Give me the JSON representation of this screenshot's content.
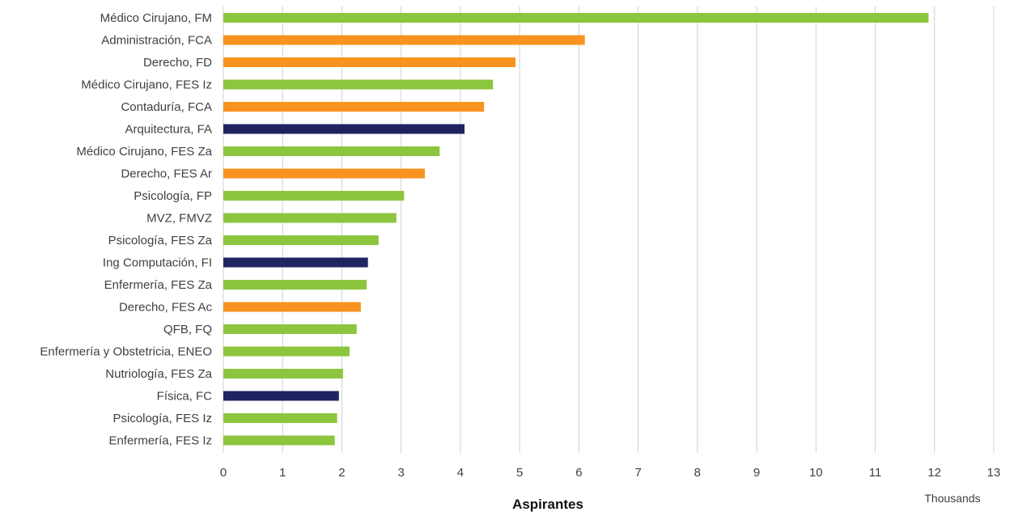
{
  "chart_data": {
    "type": "bar",
    "orientation": "horizontal",
    "title": "",
    "xlabel": "Aspirantes",
    "ylabel": "",
    "x_units_label": "Thousands",
    "xlim": [
      0,
      13
    ],
    "x_ticks": [
      0,
      1,
      2,
      3,
      4,
      5,
      6,
      7,
      8,
      9,
      10,
      11,
      12,
      13
    ],
    "grid": true,
    "legend": "none",
    "colors": {
      "green": "#8cc63f",
      "orange": "#f7931e",
      "navy": "#1f2461"
    },
    "categories": [
      "Médico Cirujano, FM",
      "Administración, FCA",
      "Derecho, FD",
      "Médico Cirujano, FES Iz",
      "Contaduría, FCA",
      "Arquitectura, FA",
      "Médico Cirujano, FES Za",
      "Derecho, FES Ar",
      "Psicología, FP",
      "MVZ, FMVZ",
      "Psicología, FES Za",
      "Ing Computación, FI",
      "Enfermería, FES Za",
      "Derecho, FES Ac",
      "QFB, FQ",
      "Enfermería y Obstetricia, ENEO",
      "Nutriología, FES Za",
      "Física, FC",
      "Psicología, FES Iz",
      "Enfermería, FES Iz"
    ],
    "values": [
      11.9,
      6.1,
      4.93,
      4.55,
      4.4,
      4.07,
      3.65,
      3.4,
      3.05,
      2.92,
      2.62,
      2.44,
      2.42,
      2.32,
      2.25,
      2.13,
      2.02,
      1.95,
      1.92,
      1.88
    ],
    "bar_colors": [
      "green",
      "orange",
      "orange",
      "green",
      "orange",
      "navy",
      "green",
      "orange",
      "green",
      "green",
      "green",
      "navy",
      "green",
      "orange",
      "green",
      "green",
      "green",
      "navy",
      "green",
      "green"
    ]
  }
}
